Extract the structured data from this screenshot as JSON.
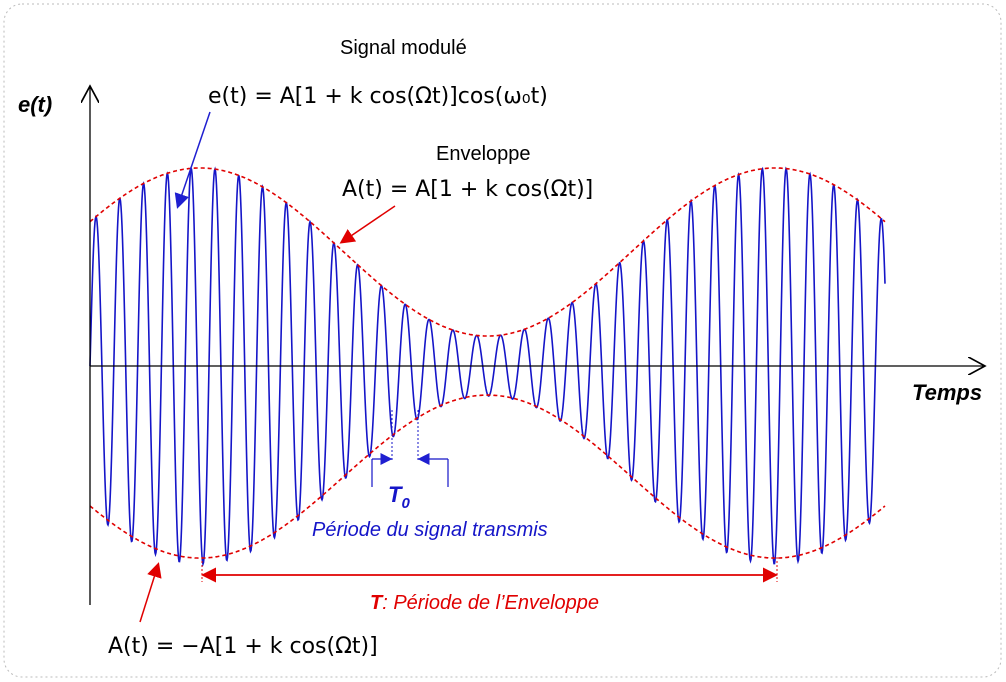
{
  "axes": {
    "y_label": "e(t)",
    "x_label": "Temps"
  },
  "signal": {
    "title": "Signal modulé",
    "formula": "e(t) = A[1 + k cos(Ωt)]cos(ω₀t)"
  },
  "envelope": {
    "title": "Enveloppe",
    "formula": "A(t) = A[1 + k cos(Ωt)]",
    "lower_formula": "A(t) = −A[1 + k cos(Ωt)]"
  },
  "carrier_period": {
    "symbol": "T",
    "subscript": "0",
    "caption": "Période du signal transmis"
  },
  "envelope_period": {
    "symbol": "T",
    "caption": ": Période de l’Enveloppe"
  }
}
